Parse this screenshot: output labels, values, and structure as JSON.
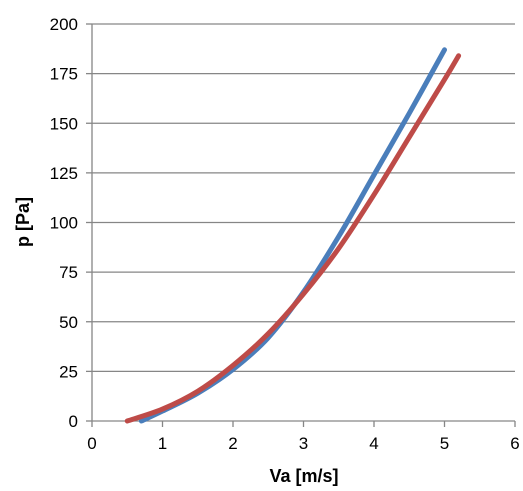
{
  "chart_data": {
    "type": "line",
    "title": "",
    "xlabel": "Va [m/s]",
    "ylabel": "p [Pa]",
    "xlim": [
      0,
      6
    ],
    "ylim": [
      0,
      200
    ],
    "xticks": [
      0,
      1,
      2,
      3,
      4,
      5,
      6
    ],
    "yticks": [
      0,
      25,
      50,
      75,
      100,
      125,
      150,
      175,
      200
    ],
    "grid": "horizontal",
    "legend": "none",
    "series": [
      {
        "color": "#4a7ebb",
        "x": [
          0.7,
          1.0,
          1.5,
          2.0,
          2.5,
          3.0,
          3.5,
          4.0,
          4.5,
          5.0
        ],
        "y": [
          0,
          5,
          14,
          26,
          42,
          65,
          93,
          124,
          155,
          187
        ]
      },
      {
        "color": "#be4b48",
        "x": [
          0.5,
          1.0,
          1.5,
          2.0,
          2.5,
          3.0,
          3.5,
          4.0,
          4.5,
          5.0,
          5.2
        ],
        "y": [
          0,
          6,
          15,
          28,
          44,
          64,
          87,
          114,
          143,
          172,
          184
        ]
      }
    ]
  }
}
